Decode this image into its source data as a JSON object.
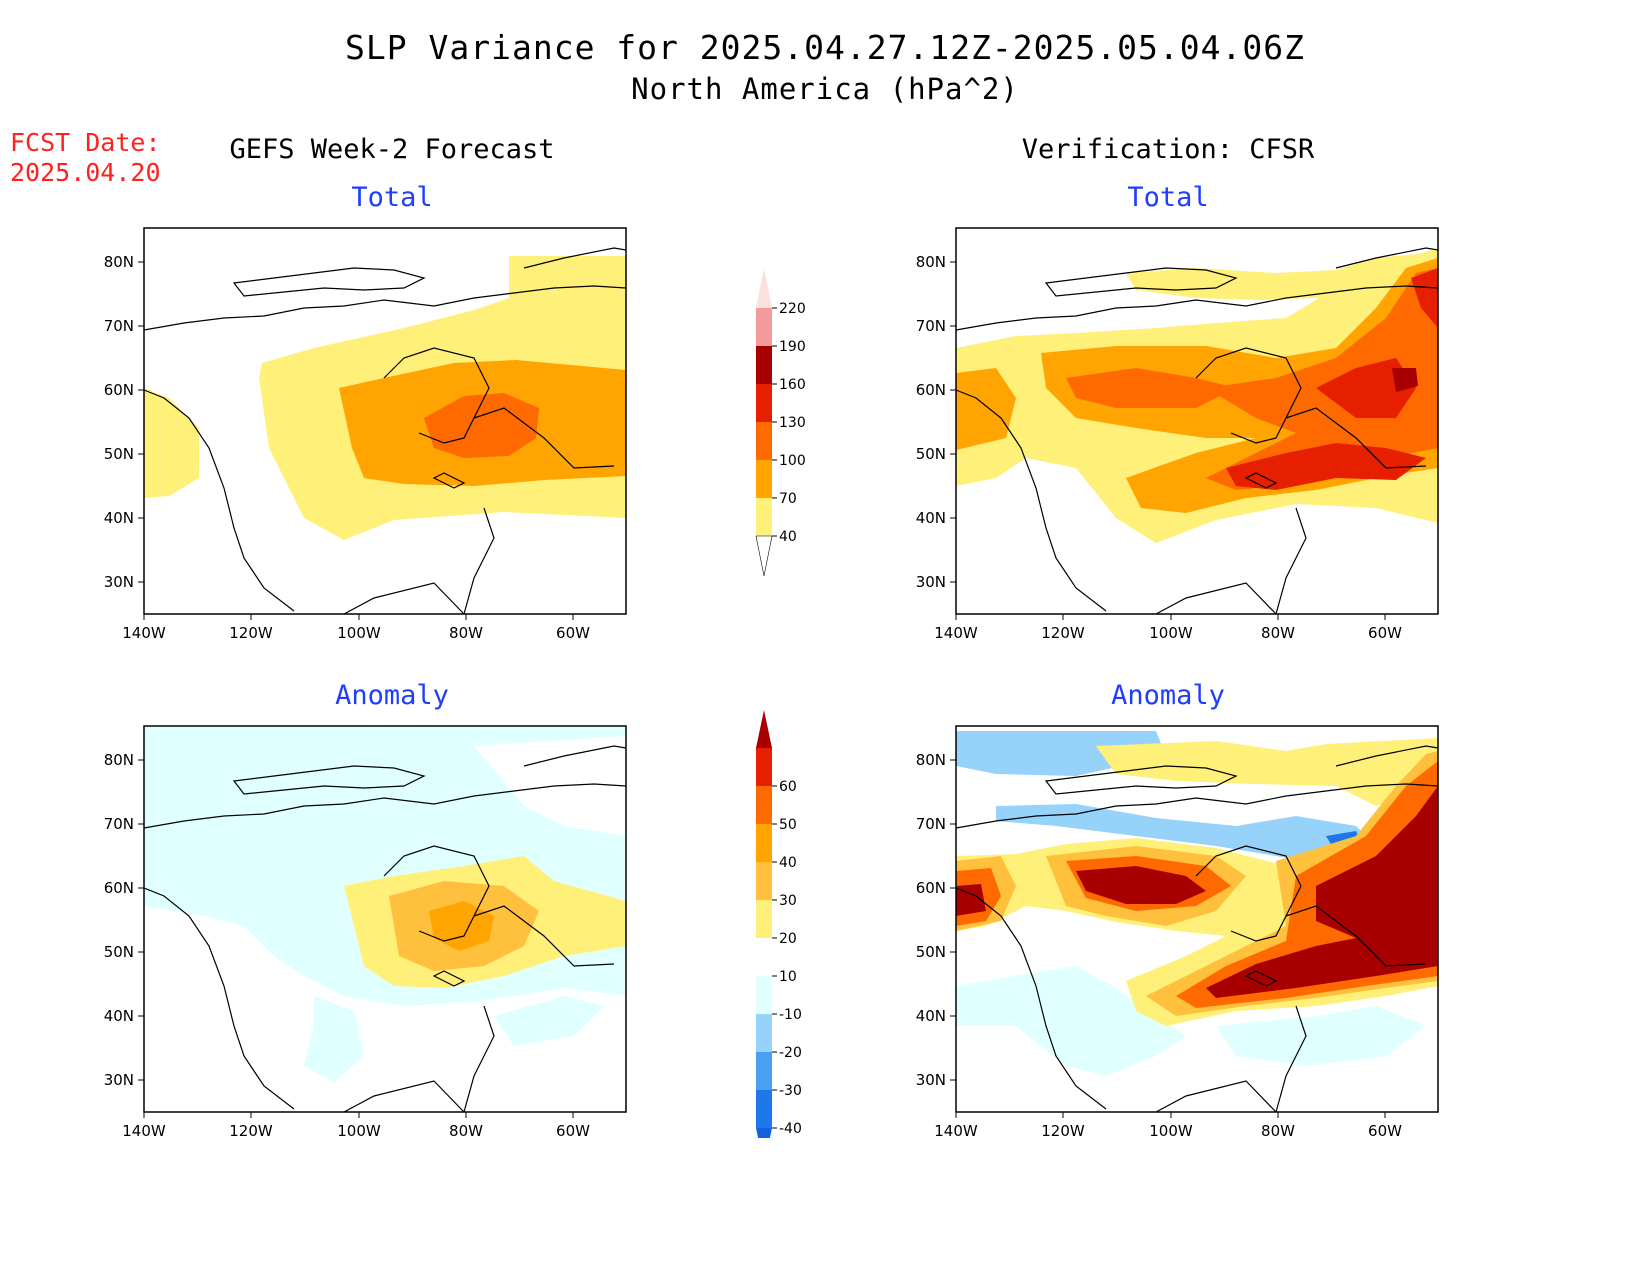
{
  "title_line1": "SLP Variance for 2025.04.27.12Z-2025.05.04.06Z",
  "title_line2": "North America (hPa^2)",
  "fcst_date_label": "FCST Date:",
  "fcst_date_value": "2025.04.20",
  "columns": {
    "left_title": "GEFS Week-2 Forecast",
    "right_title": "Verification: CFSR"
  },
  "panels": {
    "top_left_title": "Total",
    "top_right_title": "Total",
    "bottom_left_title": "Anomaly",
    "bottom_right_title": "Anomaly"
  },
  "axes": {
    "lon_labels": [
      "140W",
      "120W",
      "100W",
      "80W",
      "60W"
    ],
    "lat_labels": [
      "80N",
      "70N",
      "60N",
      "50N",
      "40N",
      "30N"
    ]
  },
  "colorbar_total": {
    "levels": [
      "40",
      "70",
      "100",
      "130",
      "160",
      "190",
      "220"
    ],
    "colors": [
      "#fff07a",
      "#ffa400",
      "#ff6a00",
      "#e51f00",
      "#a80000",
      "#f39a9a",
      "#fbe0e0"
    ]
  },
  "colorbar_anomaly": {
    "levels": [
      "-40",
      "-30",
      "-20",
      "-10",
      "10",
      "20",
      "30",
      "40",
      "50",
      "60"
    ],
    "colors": [
      "#1260dd",
      "#1e78ea",
      "#4aa0f0",
      "#96d2fa",
      "#e0ffff",
      "#ffffff",
      "#fff07a",
      "#ffc03d",
      "#ffa400",
      "#ff6a00",
      "#e51f00",
      "#a80000"
    ]
  },
  "colors": {
    "title": "#000000",
    "fcst": "#ff2020",
    "subtitle": "#1f3dff"
  }
}
